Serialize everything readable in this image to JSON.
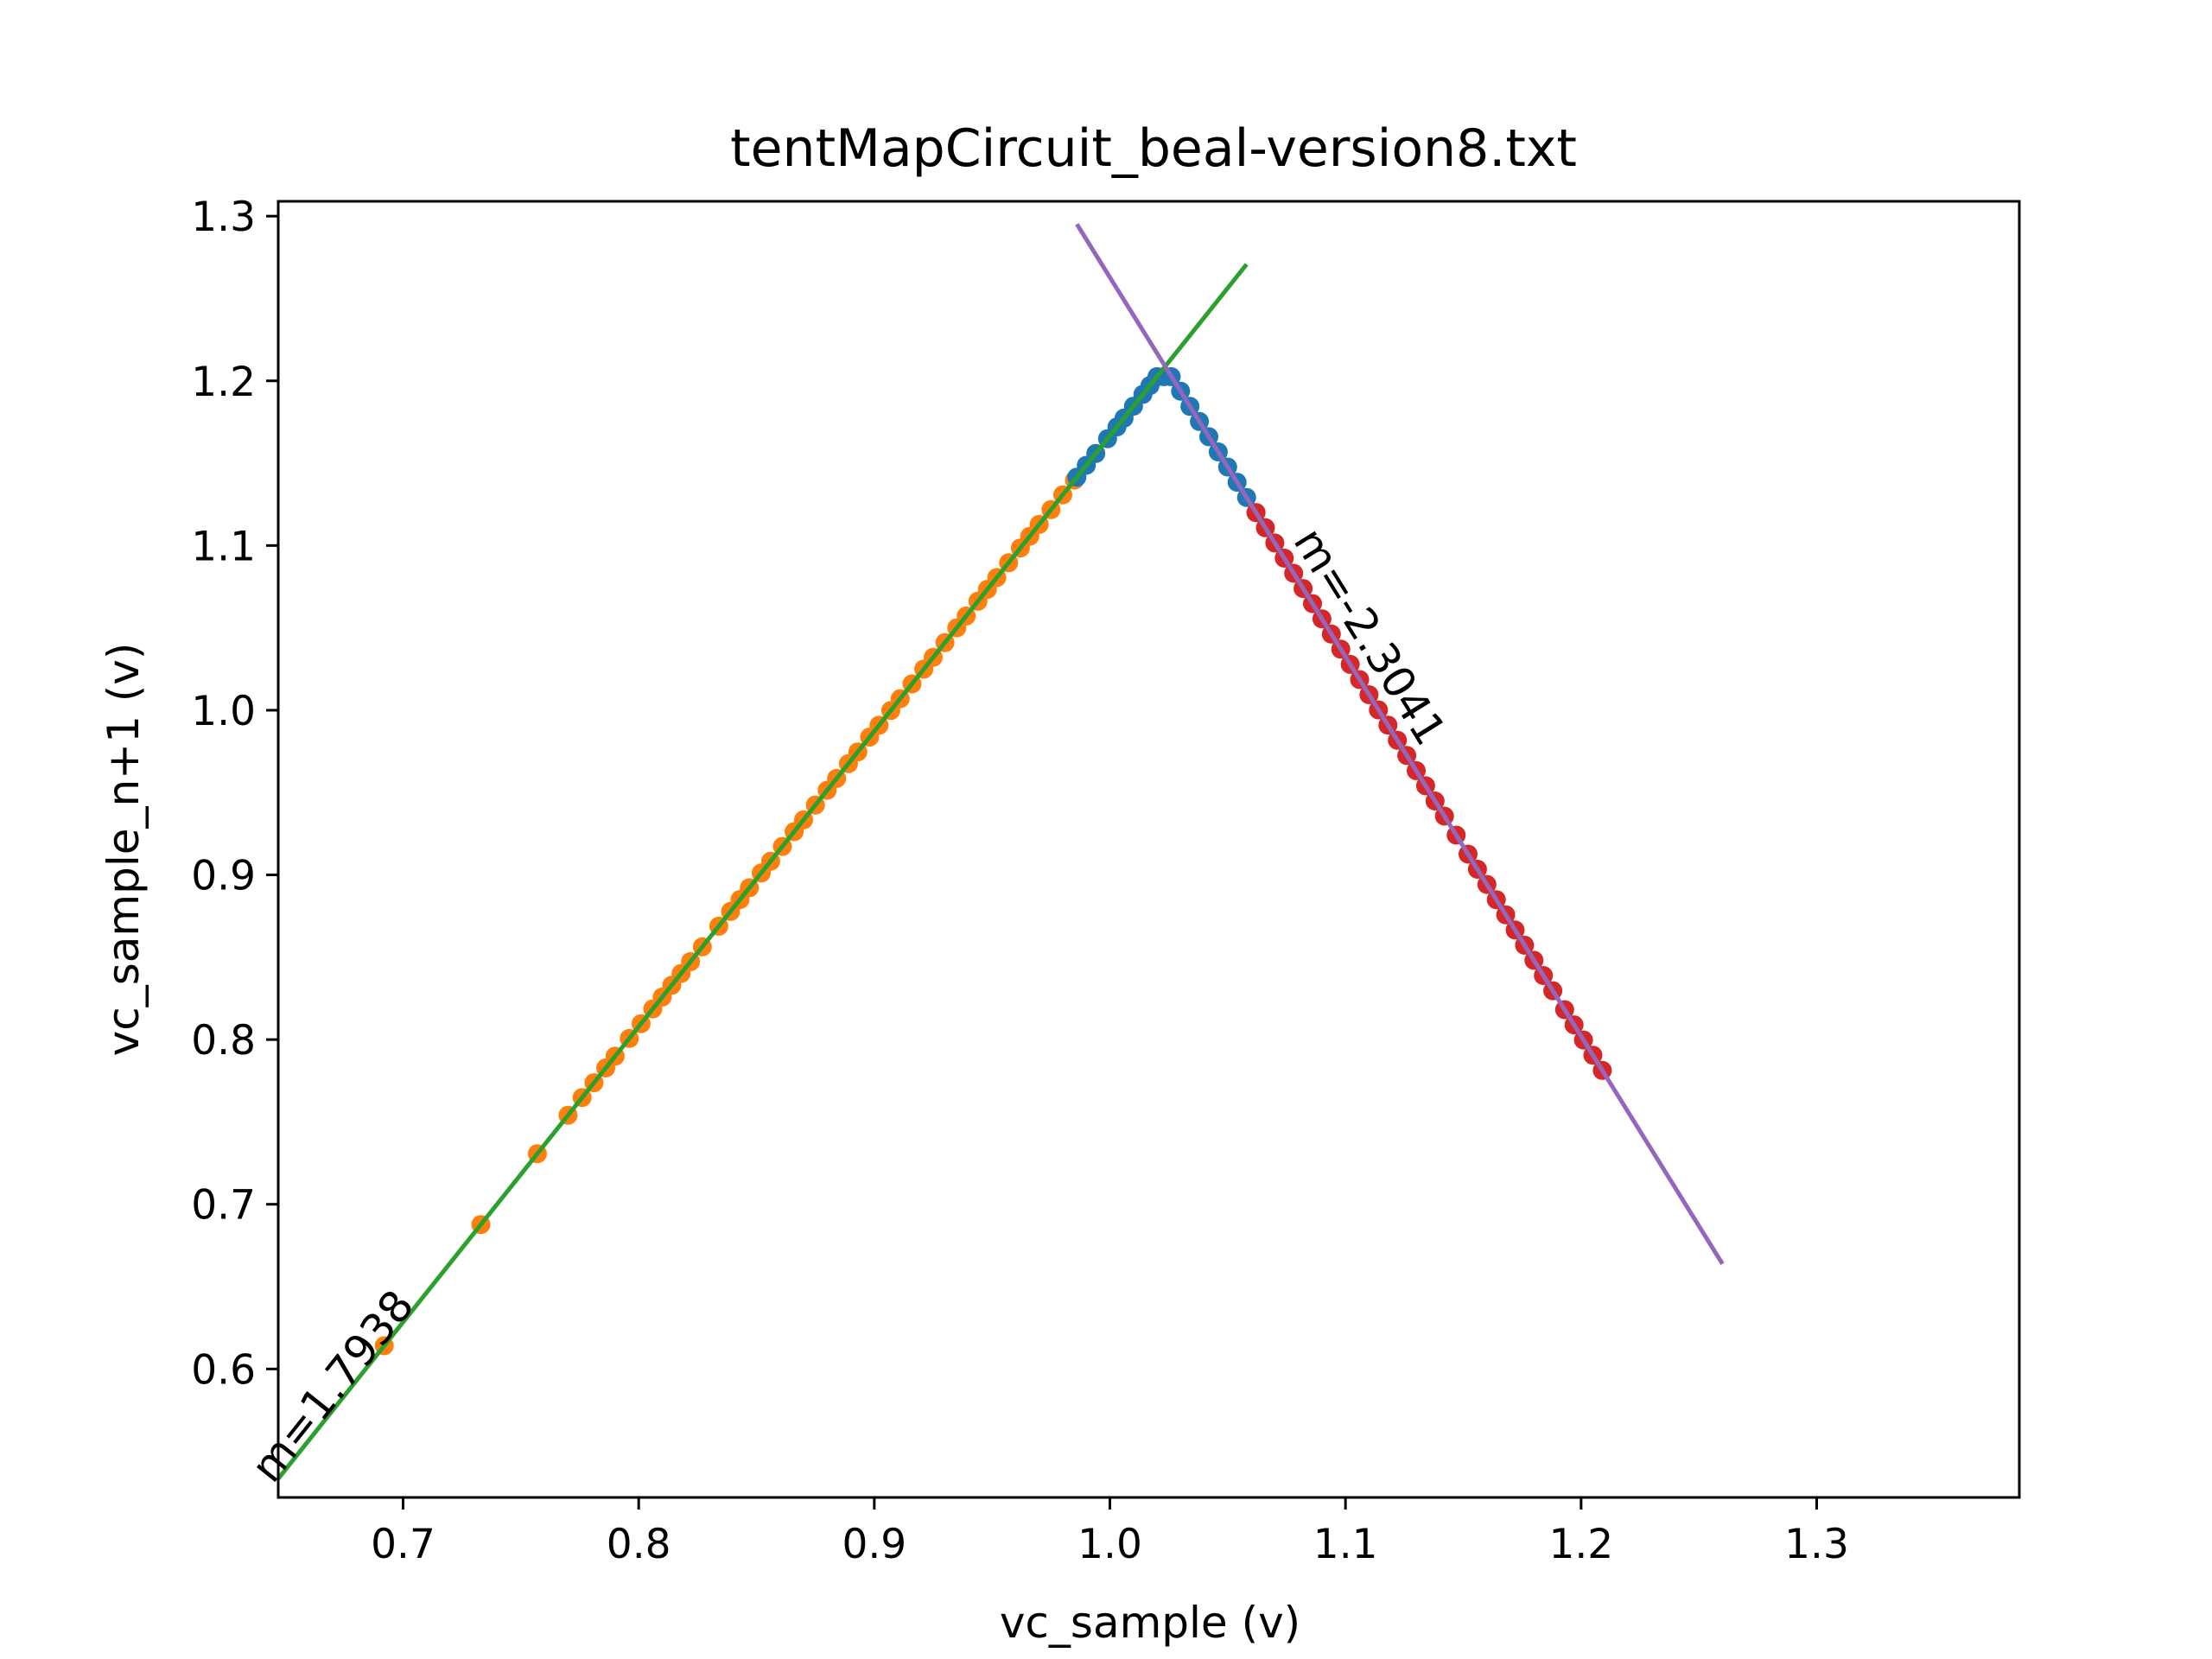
{
  "chart_data": {
    "type": "scatter",
    "title": "tentMapCircuit_beal-version8.txt",
    "xlabel": "vc_sample (v)",
    "ylabel": "vc_sample_n+1 (v)",
    "xlim": [
      0.647,
      1.386
    ],
    "ylim": [
      0.522,
      1.309
    ],
    "xticks": [
      0.7,
      0.8,
      0.9,
      1.0,
      1.1,
      1.2,
      1.3
    ],
    "yticks": [
      0.6,
      0.7,
      0.8,
      0.9,
      1.0,
      1.1,
      1.2,
      1.3
    ],
    "grid": false,
    "legend": "none",
    "colors": {
      "blue": "#1f77b4",
      "orange": "#ff7f0e",
      "green": "#2ca02c",
      "red": "#d62728",
      "purple": "#9467bd"
    },
    "series": [
      {
        "color": "#ff7f0e",
        "kind": "points",
        "x_range": [
          0.692,
          0.985
        ],
        "x_points": [
          0.692,
          0.733,
          0.757,
          0.77,
          0.776,
          0.781,
          0.786,
          0.79,
          0.796,
          0.801,
          0.806,
          0.81,
          0.814,
          0.818,
          0.822,
          0.827,
          0.834,
          0.839,
          0.843,
          0.847,
          0.852,
          0.856,
          0.861,
          0.866,
          0.87,
          0.875,
          0.88,
          0.884,
          0.889,
          0.893,
          0.898,
          0.902,
          0.907,
          0.911,
          0.916,
          0.921,
          0.925,
          0.93,
          0.935,
          0.939,
          0.944,
          0.948,
          0.952,
          0.957,
          0.962,
          0.966,
          0.97,
          0.975,
          0.98,
          0.985
        ]
      },
      {
        "color": "#1f77b4",
        "kind": "points",
        "x_points": [
          0.986,
          0.99,
          0.994,
          0.999,
          1.003,
          1.006,
          1.01,
          1.014,
          1.017,
          1.02,
          1.023,
          1.026,
          1.03,
          1.034,
          1.038,
          1.042,
          1.046,
          1.05,
          1.054,
          1.058,
          1.062
        ]
      },
      {
        "color": "#d62728",
        "kind": "points",
        "x_points": [
          1.062,
          1.066,
          1.07,
          1.074,
          1.078,
          1.082,
          1.086,
          1.09,
          1.094,
          1.098,
          1.102,
          1.106,
          1.11,
          1.114,
          1.118,
          1.122,
          1.126,
          1.13,
          1.134,
          1.138,
          1.142,
          1.147,
          1.152,
          1.156,
          1.16,
          1.164,
          1.168,
          1.172,
          1.176,
          1.18,
          1.184,
          1.188,
          1.193,
          1.197,
          1.201,
          1.205,
          1.209
        ]
      },
      {
        "color": "#2ca02c",
        "kind": "fit-line",
        "x": [
          0.647,
          1.058
        ],
        "y": [
          0.5334,
          1.2707
        ]
      },
      {
        "color": "#9467bd",
        "kind": "fit-line",
        "x": [
          0.986,
          1.26
        ],
        "y": [
          1.2951,
          0.6638
        ]
      }
    ],
    "annotations": [
      {
        "text": "m=1.7938",
        "x": 0.675,
        "y": 0.584
      },
      {
        "text": "m=-2.3041",
        "x": 1.105,
        "y": 1.04
      }
    ]
  }
}
